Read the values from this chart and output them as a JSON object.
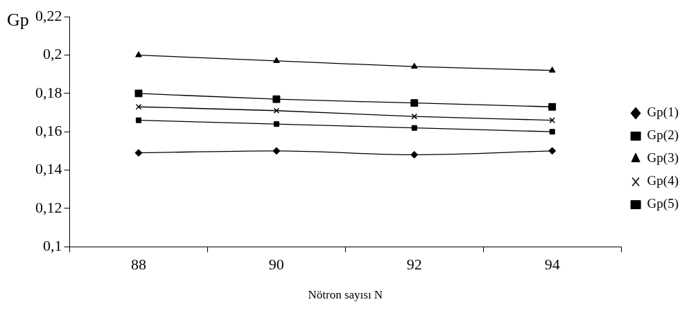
{
  "chart_data": {
    "type": "line",
    "xlabel": "Nötron sayısı N",
    "ylabel": "Gp",
    "categories": [
      "88",
      "90",
      "92",
      "94"
    ],
    "series": [
      {
        "name": "Gp(1)",
        "color": "#000000",
        "marker": "diamond",
        "values": [
          0.149,
          0.15,
          0.148,
          0.15
        ]
      },
      {
        "name": "Gp(2)",
        "color": "#000000",
        "marker": "square",
        "values": [
          0.166,
          0.164,
          0.162,
          0.16
        ]
      },
      {
        "name": "Gp(3)",
        "color": "#000000",
        "marker": "triangle",
        "values": [
          0.2,
          0.197,
          0.194,
          0.192
        ]
      },
      {
        "name": "Gp(4)",
        "color": "#000000",
        "marker": "cross",
        "values": [
          0.173,
          0.171,
          0.168,
          0.166
        ]
      },
      {
        "name": "Gp(5)",
        "color": "#000000",
        "marker": "square",
        "values": [
          0.18,
          0.177,
          0.175,
          0.173
        ]
      }
    ],
    "ylim": [
      0.1,
      0.22
    ],
    "yticks": [
      {
        "value": 0.1,
        "label": "0,1"
      },
      {
        "value": 0.12,
        "label": "0,12"
      },
      {
        "value": 0.14,
        "label": "0,14"
      },
      {
        "value": 0.16,
        "label": "0,16"
      },
      {
        "value": 0.18,
        "label": "0,18"
      },
      {
        "value": 0.2,
        "label": "0,2"
      },
      {
        "value": 0.22,
        "label": "0,22"
      }
    ],
    "grid": false,
    "legend": "right",
    "line_style": "solid"
  }
}
